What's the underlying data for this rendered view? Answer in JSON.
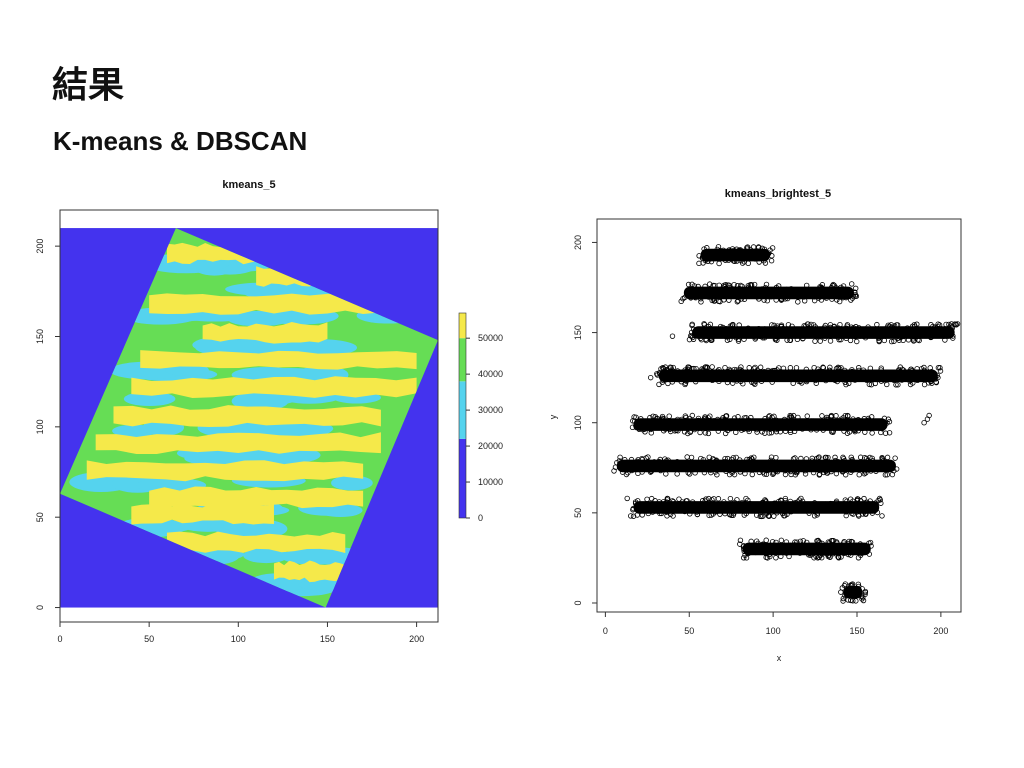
{
  "slide": {
    "title": "結果",
    "subtitle": "K-means & DBSCAN"
  },
  "chart_data": [
    {
      "type": "heatmap",
      "title": "kmeans_5",
      "xlabel": "",
      "ylabel": "",
      "xlim": [
        0,
        212
      ],
      "ylim": [
        -8,
        220
      ],
      "x_ticks": [
        "0",
        "50",
        "100",
        "150",
        "200"
      ],
      "y_ticks": [
        "0",
        "50",
        "100",
        "150",
        "200"
      ],
      "colorbar": {
        "ticks": [
          "0",
          "10000",
          "20000",
          "30000",
          "40000",
          "50000"
        ],
        "bands": [
          {
            "from": 0,
            "to": 22000,
            "color": "#4433ee"
          },
          {
            "from": 22000,
            "to": 38000,
            "color": "#55d3ee"
          },
          {
            "from": 38000,
            "to": 50000,
            "color": "#66dd55"
          },
          {
            "from": 50000,
            "to": 57000,
            "color": "#f5e94a"
          }
        ]
      },
      "background_color": "#4433ee",
      "square_corners": [
        [
          65,
          210
        ],
        [
          212,
          148
        ],
        [
          149,
          0
        ],
        [
          0,
          63
        ]
      ],
      "stripe_color": "#f5e94a",
      "stripes": [
        {
          "y": 196,
          "x1": 60,
          "x2": 120
        },
        {
          "y": 183,
          "x1": 110,
          "x2": 170
        },
        {
          "y": 168,
          "x1": 50,
          "x2": 190
        },
        {
          "y": 152,
          "x1": 80,
          "x2": 150
        },
        {
          "y": 137,
          "x1": 45,
          "x2": 200
        },
        {
          "y": 122,
          "x1": 40,
          "x2": 200
        },
        {
          "y": 106,
          "x1": 30,
          "x2": 180
        },
        {
          "y": 91,
          "x1": 20,
          "x2": 180
        },
        {
          "y": 76,
          "x1": 15,
          "x2": 170
        },
        {
          "y": 61,
          "x1": 50,
          "x2": 170
        },
        {
          "y": 52,
          "x1": 40,
          "x2": 120
        },
        {
          "y": 36,
          "x1": 60,
          "x2": 160
        },
        {
          "y": 20,
          "x1": 120,
          "x2": 160
        }
      ]
    },
    {
      "type": "scatter",
      "title": "kmeans_brightest_5",
      "xlabel": "x",
      "ylabel": "y",
      "xlim": [
        -5,
        212
      ],
      "ylim": [
        -5,
        213
      ],
      "x_ticks": [
        "0",
        "50",
        "100",
        "150",
        "200"
      ],
      "y_ticks": [
        "0",
        "50",
        "100",
        "150",
        "200"
      ],
      "clusters": [
        {
          "y": 193,
          "x1": 55,
          "x2": 100
        },
        {
          "y": 172,
          "x1": 45,
          "x2": 150
        },
        {
          "y": 150,
          "x1": 50,
          "x2": 210
        },
        {
          "y": 126,
          "x1": 30,
          "x2": 200
        },
        {
          "y": 99,
          "x1": 15,
          "x2": 170
        },
        {
          "y": 76,
          "x1": 5,
          "x2": 175
        },
        {
          "y": 53,
          "x1": 15,
          "x2": 165
        },
        {
          "y": 30,
          "x1": 80,
          "x2": 160
        },
        {
          "y": 6,
          "x1": 140,
          "x2": 155
        }
      ],
      "outliers": [
        [
          13,
          58
        ],
        [
          18,
          56
        ],
        [
          27,
          125
        ],
        [
          40,
          148
        ],
        [
          88,
          150
        ],
        [
          95,
          152
        ],
        [
          192,
          102
        ],
        [
          190,
          100
        ],
        [
          193,
          104
        ]
      ]
    }
  ]
}
